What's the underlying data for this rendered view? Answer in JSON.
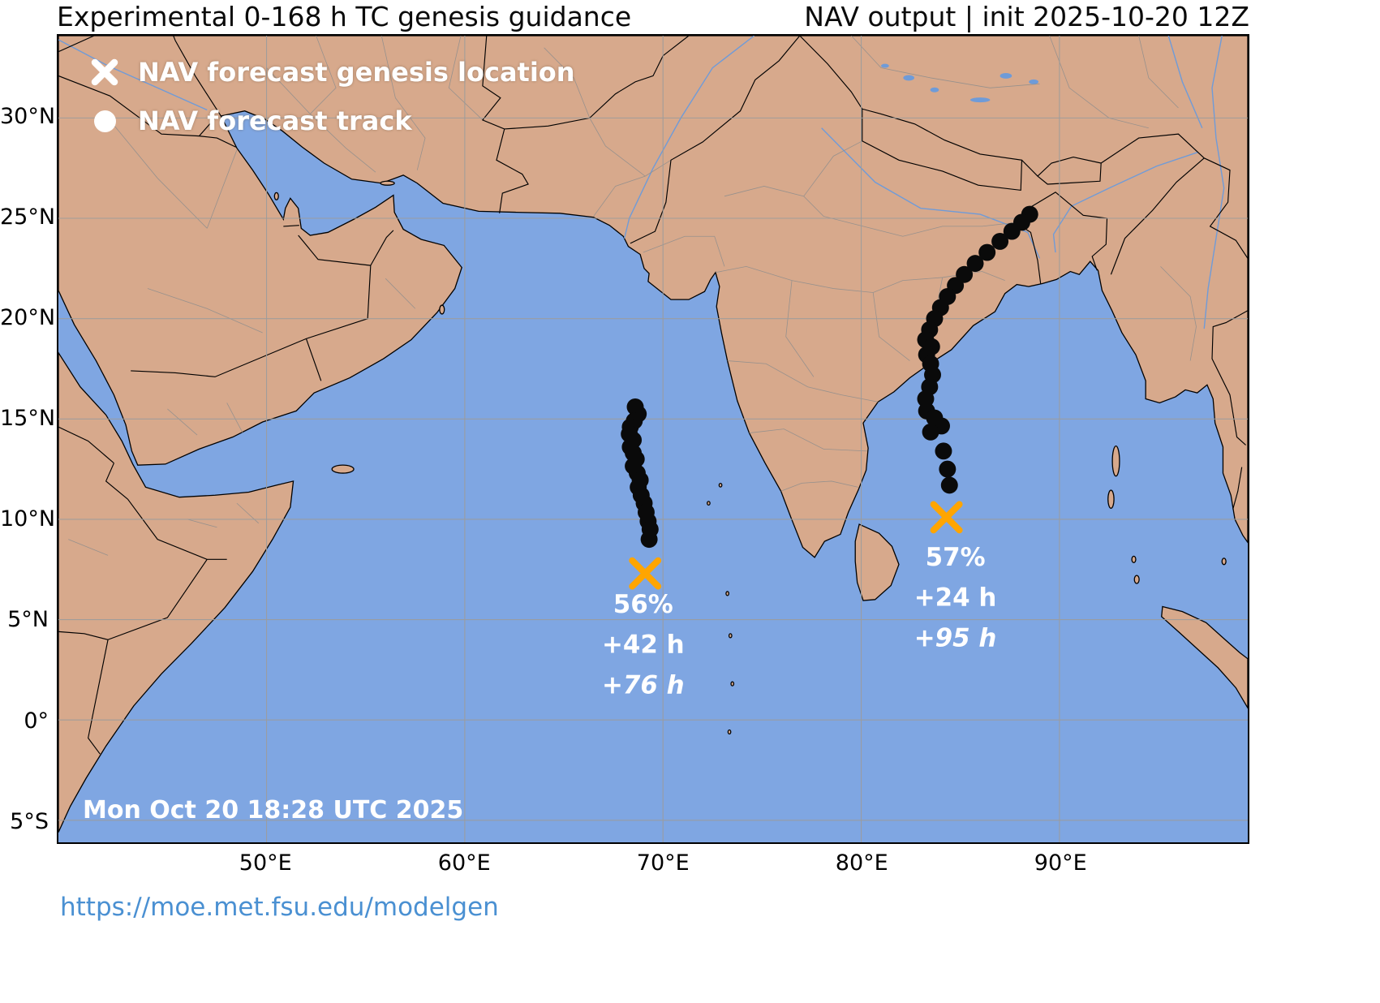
{
  "header": {
    "title_left": "Experimental 0-168 h TC genesis guidance",
    "title_right": "NAV output | init 2025-10-20 12Z"
  },
  "legend": {
    "items": [
      {
        "marker": "genesis-x",
        "label": "NAV forecast genesis location"
      },
      {
        "marker": "track-dot",
        "label": "NAV forecast track"
      }
    ]
  },
  "map": {
    "timestamp": "Mon Oct 20 18:28 UTC 2025",
    "bounds": {
      "lon_min": 39.5,
      "lon_max": 99.5,
      "lat_min": -6.1,
      "lat_max": 34.1
    },
    "colors": {
      "ocean": "#7FA6E2",
      "land": "#D7A98C",
      "river": "#6F9BD8",
      "grid": "#9C9C9C",
      "track": "#0A0A0A",
      "genesis": "#FFA500",
      "label_text": "#FFFFFF",
      "link": "#4A90D2"
    },
    "axes": {
      "x_ticks": [
        {
          "lon": 50,
          "label": "50°E"
        },
        {
          "lon": 60,
          "label": "60°E"
        },
        {
          "lon": 70,
          "label": "70°E"
        },
        {
          "lon": 80,
          "label": "80°E"
        },
        {
          "lon": 90,
          "label": "90°E"
        }
      ],
      "y_ticks": [
        {
          "lat": 30,
          "label": "30°N"
        },
        {
          "lat": 25,
          "label": "25°N"
        },
        {
          "lat": 20,
          "label": "20°N"
        },
        {
          "lat": 15,
          "label": "15°N"
        },
        {
          "lat": 10,
          "label": "10°N"
        },
        {
          "lat": 5,
          "label": "5°N"
        },
        {
          "lat": 0,
          "label": "0°"
        },
        {
          "lat": -5,
          "label": "5°S"
        }
      ]
    },
    "storms": [
      {
        "id": "arabian-sea-genesis",
        "genesis": {
          "lon": 69.1,
          "lat": 7.3
        },
        "labels": [
          {
            "text": "56%",
            "italic": false
          },
          {
            "text": "+42 h",
            "italic": false
          },
          {
            "text": "+76 h",
            "italic": true
          }
        ],
        "label_anchor": {
          "lon": 69.0,
          "lat": 5.35
        },
        "track": [
          [
            68.6,
            15.6
          ],
          [
            68.75,
            15.25
          ],
          [
            68.55,
            14.9
          ],
          [
            68.35,
            14.6
          ],
          [
            68.3,
            14.25
          ],
          [
            68.5,
            13.95
          ],
          [
            68.35,
            13.6
          ],
          [
            68.5,
            13.3
          ],
          [
            68.65,
            13.0
          ],
          [
            68.5,
            12.65
          ],
          [
            68.7,
            12.3
          ],
          [
            68.85,
            11.95
          ],
          [
            68.75,
            11.6
          ],
          [
            68.9,
            11.2
          ],
          [
            69.05,
            10.8
          ],
          [
            69.15,
            10.35
          ],
          [
            69.25,
            9.9
          ],
          [
            69.35,
            9.5
          ],
          [
            69.3,
            9.0
          ]
        ]
      },
      {
        "id": "bay-of-bengal-genesis",
        "genesis": {
          "lon": 84.3,
          "lat": 10.1
        },
        "labels": [
          {
            "text": "57%",
            "italic": false
          },
          {
            "text": "+24 h",
            "italic": false
          },
          {
            "text": "+95 h",
            "italic": true
          }
        ],
        "label_anchor": {
          "lon": 84.75,
          "lat": 7.7
        },
        "track": [
          [
            88.5,
            25.2
          ],
          [
            88.1,
            24.8
          ],
          [
            87.6,
            24.35
          ],
          [
            87.0,
            23.85
          ],
          [
            86.35,
            23.3
          ],
          [
            85.75,
            22.75
          ],
          [
            85.2,
            22.2
          ],
          [
            84.75,
            21.65
          ],
          [
            84.35,
            21.1
          ],
          [
            84.0,
            20.55
          ],
          [
            83.7,
            20.0
          ],
          [
            83.45,
            19.45
          ],
          [
            83.25,
            18.95
          ],
          [
            83.55,
            18.6
          ],
          [
            83.3,
            18.2
          ],
          [
            83.5,
            17.75
          ],
          [
            83.6,
            17.2
          ],
          [
            83.45,
            16.6
          ],
          [
            83.25,
            16.0
          ],
          [
            83.3,
            15.4
          ],
          [
            83.7,
            15.05
          ],
          [
            84.05,
            14.65
          ],
          [
            83.5,
            14.35
          ],
          [
            84.15,
            13.4
          ],
          [
            84.35,
            12.5
          ],
          [
            84.45,
            11.7
          ]
        ]
      }
    ]
  },
  "footer": {
    "link": "https://moe.met.fsu.edu/modelgen"
  }
}
